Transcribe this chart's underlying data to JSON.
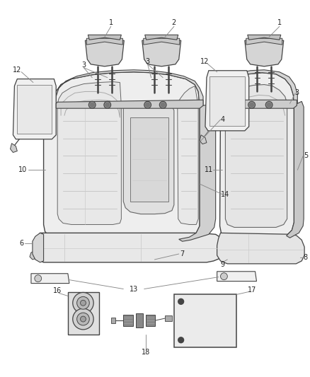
{
  "bg_color": "#ffffff",
  "line_color": "#666666",
  "dark_line": "#444444",
  "fill_light": "#f2f2f2",
  "fill_mid": "#e0e0e0",
  "fill_dark": "#c8c8c8",
  "label_color": "#333333",
  "leader_color": "#888888"
}
